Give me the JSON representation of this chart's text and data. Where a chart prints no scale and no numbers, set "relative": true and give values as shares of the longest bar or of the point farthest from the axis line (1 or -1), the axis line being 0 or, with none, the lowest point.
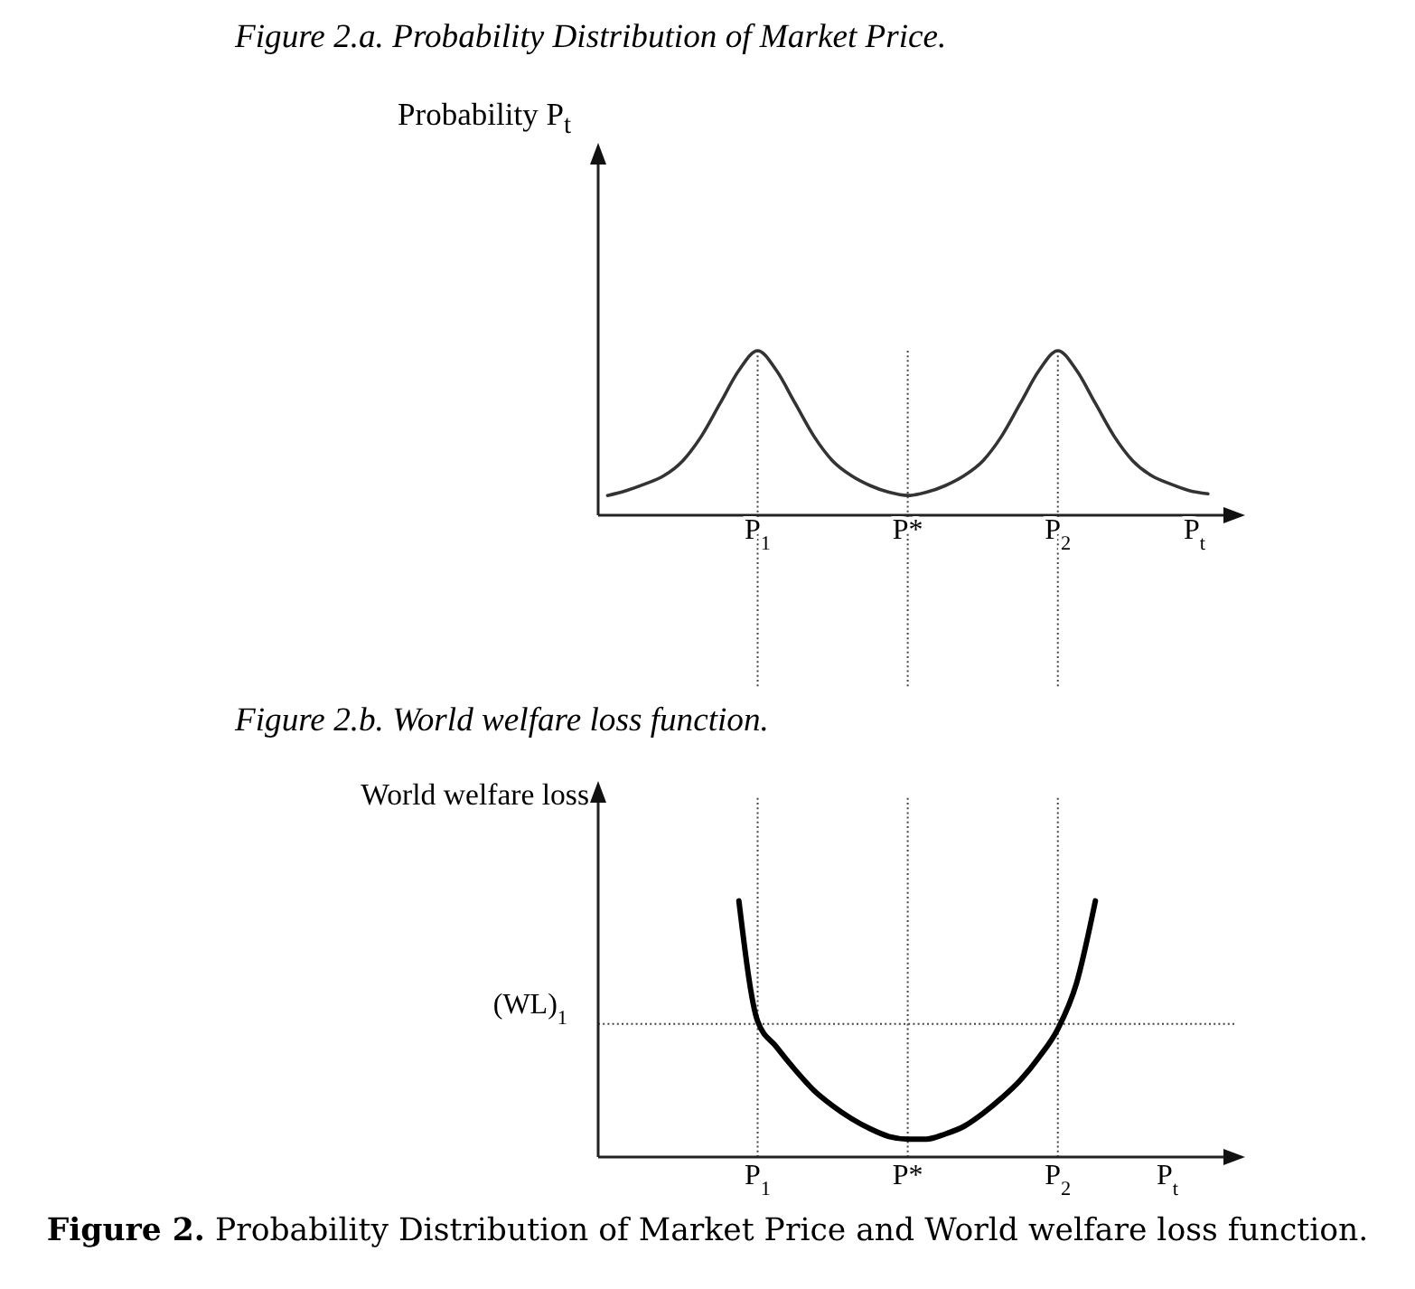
{
  "chart_data": [
    {
      "type": "line",
      "title": "Figure 2.a. Probability Distribution of Market Price.",
      "ylabel": "Probability P$_{t}$",
      "xlabel": "P$_{t}$",
      "relative": true,
      "marker": "none",
      "line_style": "solid",
      "categories": [
        null,
        null,
        null,
        null,
        null,
        null,
        null,
        null,
        "P$_{1}$",
        null,
        null,
        null,
        null,
        null,
        null,
        null,
        "P*",
        null,
        null,
        null,
        null,
        null,
        null,
        null,
        "P$_{2}$",
        null,
        null,
        null,
        null,
        null,
        null,
        null,
        null,
        null
      ],
      "series": [
        {
          "color": "#333333",
          "values": [
            0.12,
            0.15,
            0.19,
            0.24,
            0.33,
            0.48,
            0.68,
            0.88,
            1,
            0.88,
            0.68,
            0.48,
            0.33,
            0.24,
            0.18,
            0.14,
            0.12,
            0.14,
            0.18,
            0.24,
            0.33,
            0.48,
            0.68,
            0.88,
            1,
            0.88,
            0.68,
            0.48,
            0.33,
            0.24,
            0.19,
            0.15,
            0.13,
            null
          ]
        }
      ],
      "ref_lines": [
        {
          "axis": "x",
          "value": "P$_{1}$",
          "color": "#444444",
          "line_style": "dotted"
        },
        {
          "axis": "x",
          "value": "P*",
          "color": "#444444",
          "line_style": "dotted"
        },
        {
          "axis": "x",
          "value": "P$_{2}$",
          "color": "#444444",
          "line_style": "dotted"
        }
      ]
    },
    {
      "type": "line",
      "title": "Figure 2.b. World welfare loss function.",
      "ylabel": "World welfare loss",
      "xlabel": "P$_{t}$",
      "relative": true,
      "marker": "none",
      "line_style": "solid",
      "categories": [
        null,
        null,
        null,
        null,
        null,
        null,
        null,
        null,
        "P$_{1}$",
        null,
        null,
        null,
        null,
        null,
        null,
        null,
        "P*",
        null,
        null,
        null,
        null,
        null,
        null,
        null,
        "P$_{2}$",
        null,
        null,
        null,
        null,
        null,
        null,
        null,
        null,
        null
      ],
      "series": [
        {
          "color": "#000000",
          "values": [
            null,
            null,
            null,
            null,
            null,
            null,
            null,
            1,
            0.53,
            0.43,
            0.34,
            0.26,
            0.2,
            0.15,
            0.11,
            0.08,
            0.07,
            0.07,
            0.09,
            0.12,
            0.17,
            0.23,
            0.3,
            0.39,
            0.5,
            0.68,
            1,
            null,
            null,
            null,
            null,
            null,
            null,
            null
          ]
        }
      ],
      "ref_lines": [
        {
          "axis": "x",
          "value": "P$_{1}$",
          "color": "#444444",
          "line_style": "dotted"
        },
        {
          "axis": "x",
          "value": "P*",
          "color": "#444444",
          "line_style": "dotted"
        },
        {
          "axis": "x",
          "value": "P$_{2}$",
          "color": "#444444",
          "line_style": "dotted"
        },
        {
          "axis": "y",
          "value": 0.52,
          "label": "(WL)$_{1}$",
          "color": "#444444",
          "line_style": "dotted"
        }
      ],
      "annotations": [
        "Figure 2. Probability Distribution of Market Price and World welfare loss function."
      ]
    }
  ]
}
